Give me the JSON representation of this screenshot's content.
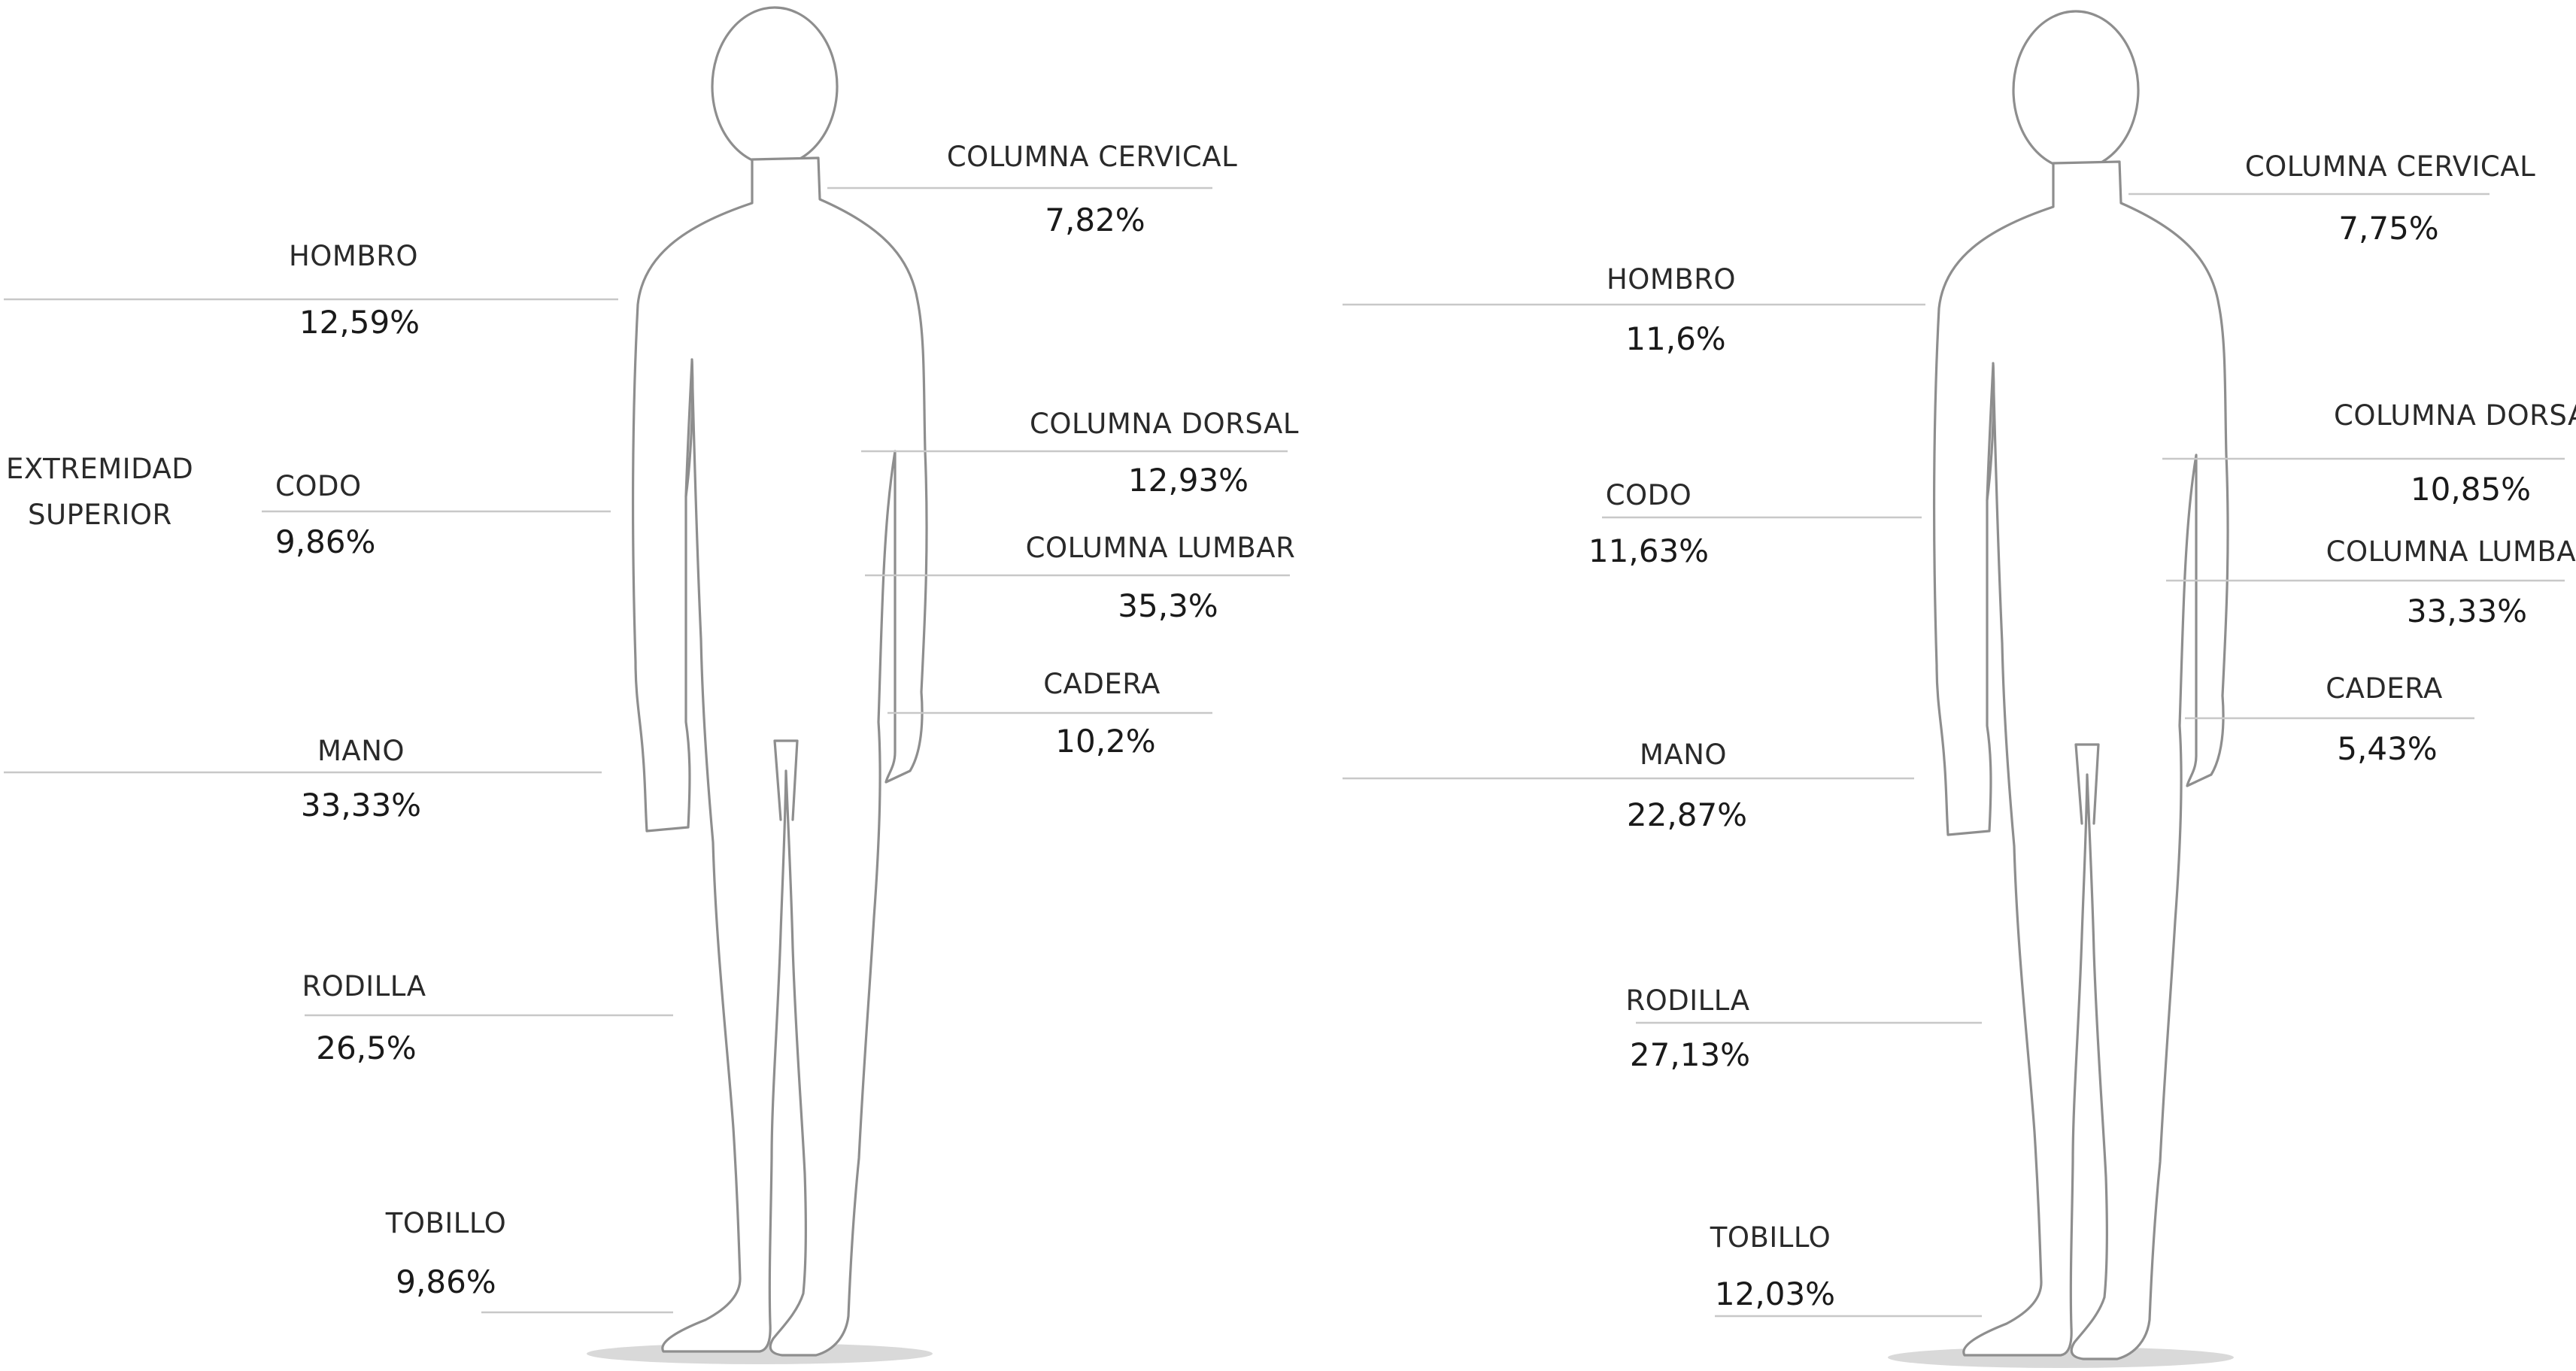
{
  "left_figure": {
    "extremidad_superior": [
      "EXTREMIDAD",
      "SUPERIOR"
    ],
    "hombro": {
      "label": "HOMBRO",
      "value": "12,59%"
    },
    "codo": {
      "label": "CODO",
      "value": "9,86%"
    },
    "mano": {
      "label": "MANO",
      "value": "33,33%"
    },
    "rodilla": {
      "label": "RODILLA",
      "value": "26,5%"
    },
    "tobillo": {
      "label": "TOBILLO",
      "value": "9,86%"
    },
    "columna_cervical": {
      "label": "COLUMNA CERVICAL",
      "value": "7,82%"
    },
    "columna_dorsal": {
      "label": "COLUMNA DORSAL",
      "value": "12,93%"
    },
    "columna_lumbar": {
      "label": "COLUMNA LUMBAR",
      "value": "35,3%"
    },
    "cadera": {
      "label": "CADERA",
      "value": "10,2%"
    }
  },
  "right_figure": {
    "hombro": {
      "label": "HOMBRO",
      "value": "11,6%"
    },
    "codo": {
      "label": "CODO",
      "value": "11,63%"
    },
    "mano": {
      "label": "MANO",
      "value": "22,87%"
    },
    "rodilla": {
      "label": "RODILLA",
      "value": "27,13%"
    },
    "tobillo": {
      "label": "TOBILLO",
      "value": "12,03%"
    },
    "columna_cervical": {
      "label": "COLUMNA CERVICAL",
      "value": "7,75%"
    },
    "columna_dorsal": {
      "label": "COLUMNA DORSAL",
      "value": "10,85%"
    },
    "columna_lumbar": {
      "label": "COLUMNA LUMBAR",
      "value": "33,33%"
    },
    "cadera": {
      "label": "CADERA",
      "value": "5,43%"
    }
  },
  "colors": {
    "outline": "#8e8e8e",
    "leader_line": "#c8c8c8",
    "text": "#1f1f1f",
    "shadow": "#d6d6d6"
  }
}
